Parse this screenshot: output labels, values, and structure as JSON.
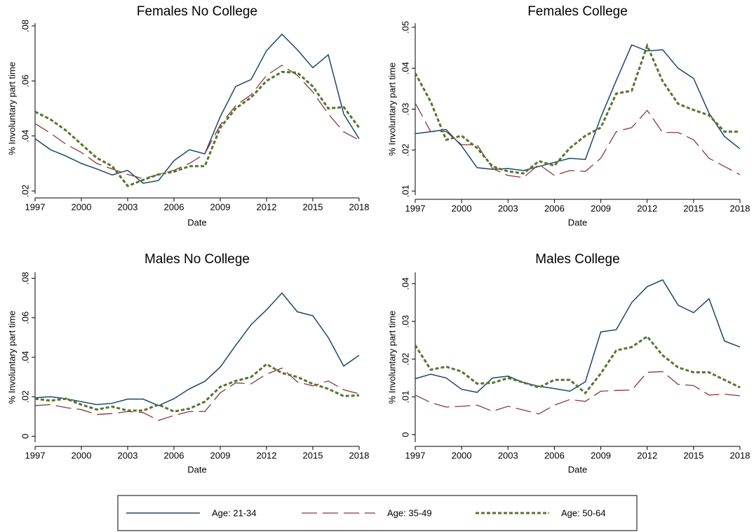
{
  "chart_data": [
    {
      "type": "line",
      "title": "Females No College",
      "xlabel": "Date",
      "ylabel": "% Involuntary part time",
      "x": [
        1997,
        1998,
        1999,
        2000,
        2001,
        2002,
        2003,
        2004,
        2005,
        2006,
        2007,
        2008,
        2009,
        2010,
        2011,
        2012,
        2013,
        2014,
        2015,
        2016,
        2017,
        2018
      ],
      "xlim": [
        1997,
        2018
      ],
      "xticks": [
        1997,
        2000,
        2003,
        2006,
        2009,
        2012,
        2015,
        2018
      ],
      "ylim": [
        0.019,
        0.081
      ],
      "yticks": [
        {
          "value": 0.02,
          "label": ".02"
        },
        {
          "value": 0.04,
          "label": ".04"
        },
        {
          "value": 0.06,
          "label": ".06"
        },
        {
          "value": 0.08,
          "label": ".08"
        }
      ],
      "series": [
        {
          "name": "Age: 21-34",
          "color": "#1a476f",
          "style": "solid",
          "values": [
            0.039,
            0.035,
            0.0327,
            0.03,
            0.028,
            0.0258,
            0.0275,
            0.0228,
            0.0238,
            0.031,
            0.035,
            0.0335,
            0.047,
            0.058,
            0.0605,
            0.071,
            0.077,
            0.0713,
            0.0648,
            0.0695,
            0.048,
            0.039
          ]
        },
        {
          "name": "Age: 35-49",
          "color": "#90353b",
          "style": "longdash",
          "values": [
            0.0445,
            0.041,
            0.037,
            0.034,
            0.03,
            0.028,
            0.026,
            0.0245,
            0.026,
            0.0275,
            0.03,
            0.0335,
            0.044,
            0.051,
            0.055,
            0.062,
            0.0657,
            0.062,
            0.056,
            0.048,
            0.0415,
            0.0385
          ]
        },
        {
          "name": "Age: 50-64",
          "color": "#55752f",
          "style": "shortdash",
          "values": [
            0.0488,
            0.046,
            0.042,
            0.037,
            0.032,
            0.029,
            0.0218,
            0.024,
            0.026,
            0.027,
            0.029,
            0.029,
            0.043,
            0.05,
            0.054,
            0.06,
            0.0633,
            0.063,
            0.058,
            0.05,
            0.0505,
            0.043
          ]
        }
      ]
    },
    {
      "type": "line",
      "title": "Females College",
      "xlabel": "Date",
      "ylabel": "% Involuntary part time",
      "x": [
        1997,
        1998,
        1999,
        2000,
        2001,
        2002,
        2003,
        2004,
        2005,
        2006,
        2007,
        2008,
        2009,
        2010,
        2011,
        2012,
        2013,
        2014,
        2015,
        2016,
        2017,
        2018
      ],
      "xlim": [
        1997,
        2018
      ],
      "xticks": [
        1997,
        2000,
        2003,
        2006,
        2009,
        2012,
        2015,
        2018
      ],
      "ylim": [
        0.009,
        0.051
      ],
      "yticks": [
        {
          "value": 0.01,
          "label": ".01"
        },
        {
          "value": 0.02,
          "label": ".02"
        },
        {
          "value": 0.03,
          "label": ".03"
        },
        {
          "value": 0.04,
          "label": ".04"
        },
        {
          "value": 0.05,
          "label": ".05"
        }
      ],
      "series": [
        {
          "color": "#1a476f",
          "style": "solid",
          "values": [
            0.024,
            0.0245,
            0.025,
            0.021,
            0.0157,
            0.0153,
            0.0155,
            0.015,
            0.016,
            0.017,
            0.018,
            0.0177,
            0.028,
            0.037,
            0.0457,
            0.0442,
            0.0445,
            0.04,
            0.0375,
            0.029,
            0.0233,
            0.0203
          ]
        },
        {
          "color": "#90353b",
          "style": "longdash",
          "values": [
            0.0315,
            0.0245,
            0.0245,
            0.0213,
            0.0213,
            0.0155,
            0.0138,
            0.0133,
            0.0165,
            0.0138,
            0.015,
            0.0148,
            0.018,
            0.0245,
            0.0255,
            0.0297,
            0.0243,
            0.0243,
            0.0225,
            0.018,
            0.016,
            0.014
          ]
        },
        {
          "color": "#55752f",
          "style": "shortdash",
          "values": [
            0.0388,
            0.0318,
            0.0225,
            0.0235,
            0.0205,
            0.016,
            0.0148,
            0.0143,
            0.0173,
            0.0162,
            0.0205,
            0.0235,
            0.0255,
            0.0338,
            0.0345,
            0.0455,
            0.0368,
            0.0313,
            0.0298,
            0.0285,
            0.0245,
            0.0245
          ]
        }
      ]
    },
    {
      "type": "line",
      "title": "Males No College",
      "xlabel": "Date",
      "ylabel": "% Involuntary part time",
      "x": [
        1997,
        1998,
        1999,
        2000,
        2001,
        2002,
        2003,
        2004,
        2005,
        2006,
        2007,
        2008,
        2009,
        2010,
        2011,
        2012,
        2013,
        2014,
        2015,
        2016,
        2017,
        2018
      ],
      "xlim": [
        1997,
        2018
      ],
      "xticks": [
        1997,
        2000,
        2003,
        2006,
        2009,
        2012,
        2015,
        2018
      ],
      "ylim": [
        -0.003,
        0.083
      ],
      "yticks": [
        0,
        {
          "value": 0.02,
          "label": ".02"
        },
        {
          "value": 0.04,
          "label": ".04"
        },
        {
          "value": 0.06,
          "label": ".06"
        },
        {
          "value": 0.08,
          "label": ".08"
        }
      ],
      "series": [
        {
          "color": "#1a476f",
          "style": "solid",
          "values": [
            0.0195,
            0.02,
            0.019,
            0.0175,
            0.016,
            0.0167,
            0.0188,
            0.0188,
            0.0155,
            0.019,
            0.024,
            0.0278,
            0.035,
            0.046,
            0.0565,
            0.064,
            0.0725,
            0.063,
            0.061,
            0.05,
            0.0355,
            0.041
          ]
        },
        {
          "color": "#90353b",
          "style": "longdash",
          "values": [
            0.0155,
            0.016,
            0.0145,
            0.0135,
            0.011,
            0.0115,
            0.0125,
            0.012,
            0.008,
            0.0105,
            0.0125,
            0.0125,
            0.022,
            0.027,
            0.0265,
            0.0315,
            0.0345,
            0.0275,
            0.0255,
            0.028,
            0.0235,
            0.0215
          ]
        },
        {
          "color": "#55752f",
          "style": "shortdash",
          "values": [
            0.019,
            0.018,
            0.019,
            0.016,
            0.0135,
            0.015,
            0.013,
            0.013,
            0.016,
            0.0125,
            0.014,
            0.0175,
            0.025,
            0.028,
            0.03,
            0.0365,
            0.032,
            0.03,
            0.0265,
            0.024,
            0.0203,
            0.0207
          ]
        }
      ]
    },
    {
      "type": "line",
      "title": "Males College",
      "xlabel": "Date",
      "ylabel": "% Involuntary part time",
      "x": [
        1997,
        1998,
        1999,
        2000,
        2001,
        2002,
        2003,
        2004,
        2005,
        2006,
        2007,
        2008,
        2009,
        2010,
        2011,
        2012,
        2013,
        2014,
        2015,
        2016,
        2017,
        2018
      ],
      "xlim": [
        1997,
        2018
      ],
      "xticks": [
        1997,
        2000,
        2003,
        2006,
        2009,
        2012,
        2015,
        2018
      ],
      "ylim": [
        -0.002,
        0.043
      ],
      "yticks": [
        0,
        {
          "value": 0.01,
          "label": ".01"
        },
        {
          "value": 0.02,
          "label": ".02"
        },
        {
          "value": 0.03,
          "label": ".03"
        },
        {
          "value": 0.04,
          "label": ".04"
        }
      ],
      "series": [
        {
          "color": "#1a476f",
          "style": "solid",
          "values": [
            0.0148,
            0.016,
            0.015,
            0.012,
            0.0112,
            0.015,
            0.0155,
            0.0138,
            0.0128,
            0.0122,
            0.0115,
            0.014,
            0.0272,
            0.0278,
            0.035,
            0.0392,
            0.041,
            0.0343,
            0.0323,
            0.036,
            0.0248,
            0.0232
          ]
        },
        {
          "color": "#90353b",
          "style": "longdash",
          "values": [
            0.0105,
            0.0085,
            0.0073,
            0.0075,
            0.0078,
            0.0062,
            0.0075,
            0.0065,
            0.0055,
            0.0078,
            0.0093,
            0.0088,
            0.0115,
            0.0117,
            0.0118,
            0.0165,
            0.0167,
            0.0133,
            0.013,
            0.0105,
            0.0107,
            0.0103
          ]
        },
        {
          "color": "#55752f",
          "style": "shortdash",
          "values": [
            0.0237,
            0.0172,
            0.018,
            0.0167,
            0.0135,
            0.0137,
            0.015,
            0.0138,
            0.0125,
            0.0145,
            0.0145,
            0.011,
            0.0162,
            0.0223,
            0.0232,
            0.026,
            0.021,
            0.0178,
            0.0165,
            0.0165,
            0.0145,
            0.0125
          ]
        }
      ]
    }
  ]
}
